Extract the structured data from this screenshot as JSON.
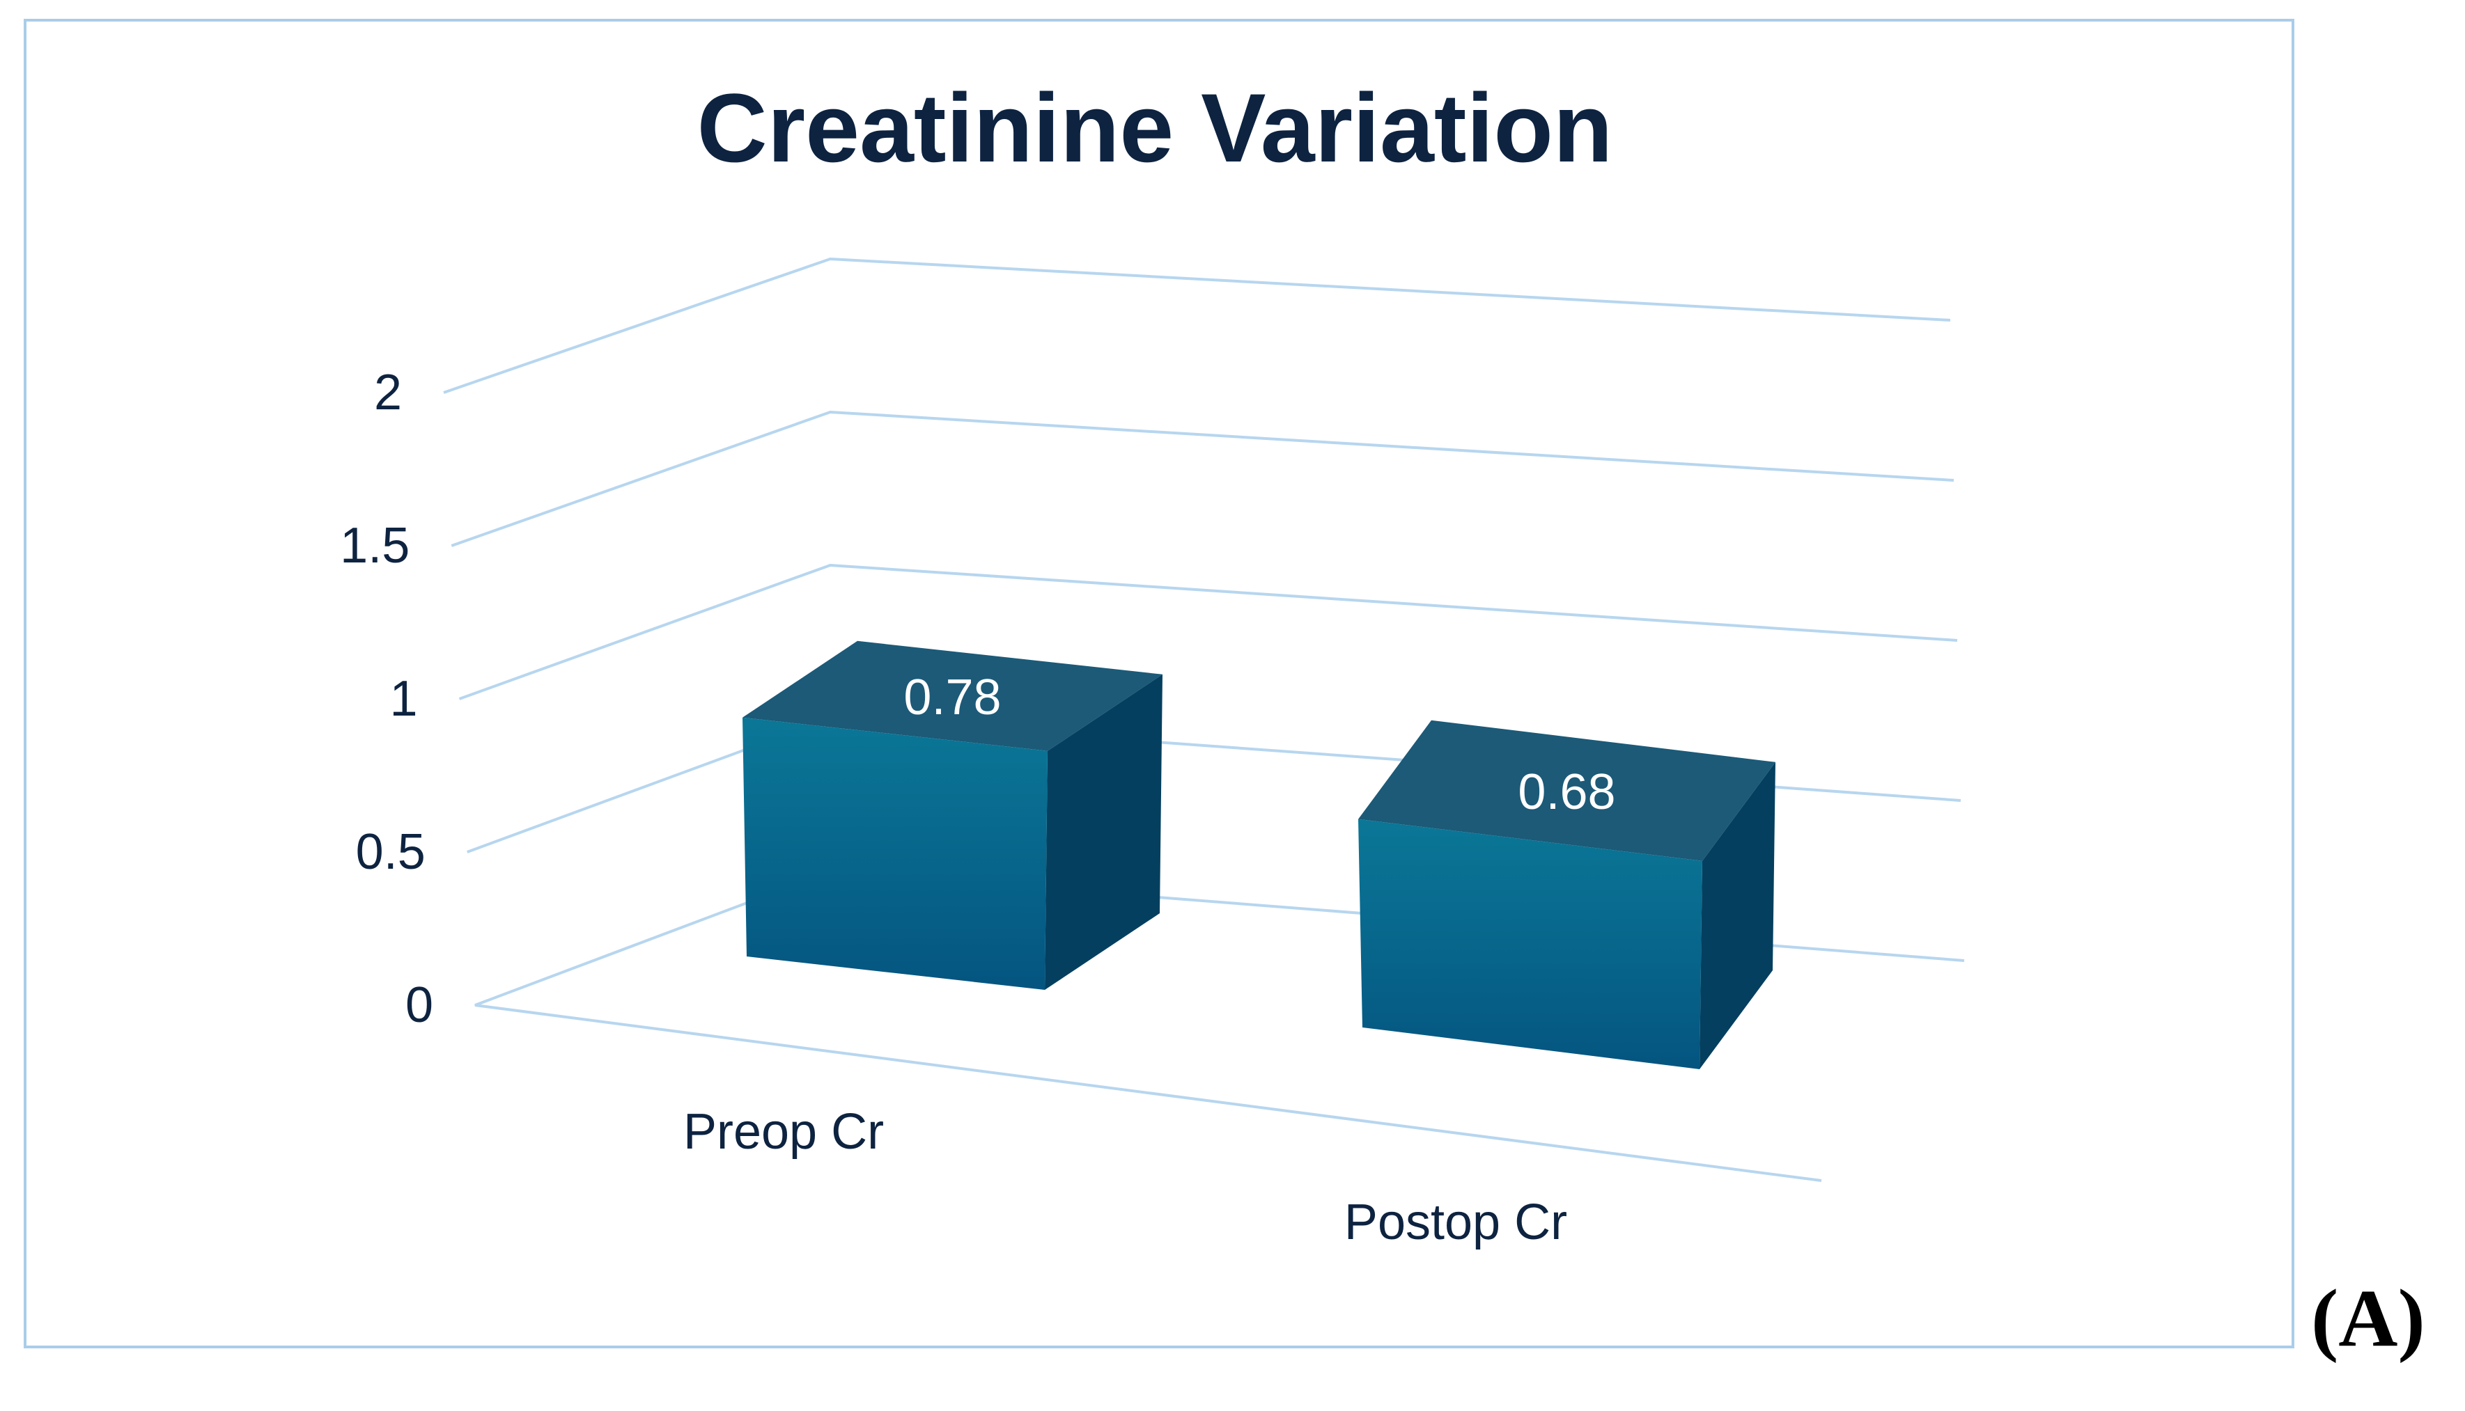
{
  "chart_data": {
    "type": "bar",
    "title": "Creatinine Variation",
    "categories": [
      "Preop Cr",
      "Postop Cr"
    ],
    "values": [
      0.78,
      0.68
    ],
    "data_labels": [
      "0.78",
      "0.68"
    ],
    "ylim": [
      0,
      2
    ],
    "yticks": [
      "0",
      "0.5",
      "1",
      "1.5",
      "2"
    ],
    "xlabel": "",
    "ylabel": "",
    "grid": true,
    "legend": "none",
    "colors": {
      "bar_front_top": "#0b7797",
      "bar_front_bottom": "#045580",
      "bar_top": "#1c5a78",
      "bar_side": "#053f5f",
      "gridline": "#b7d6ef",
      "text": "#0d2340",
      "frame": "#a9cdea"
    }
  },
  "panel_label": "(A)"
}
